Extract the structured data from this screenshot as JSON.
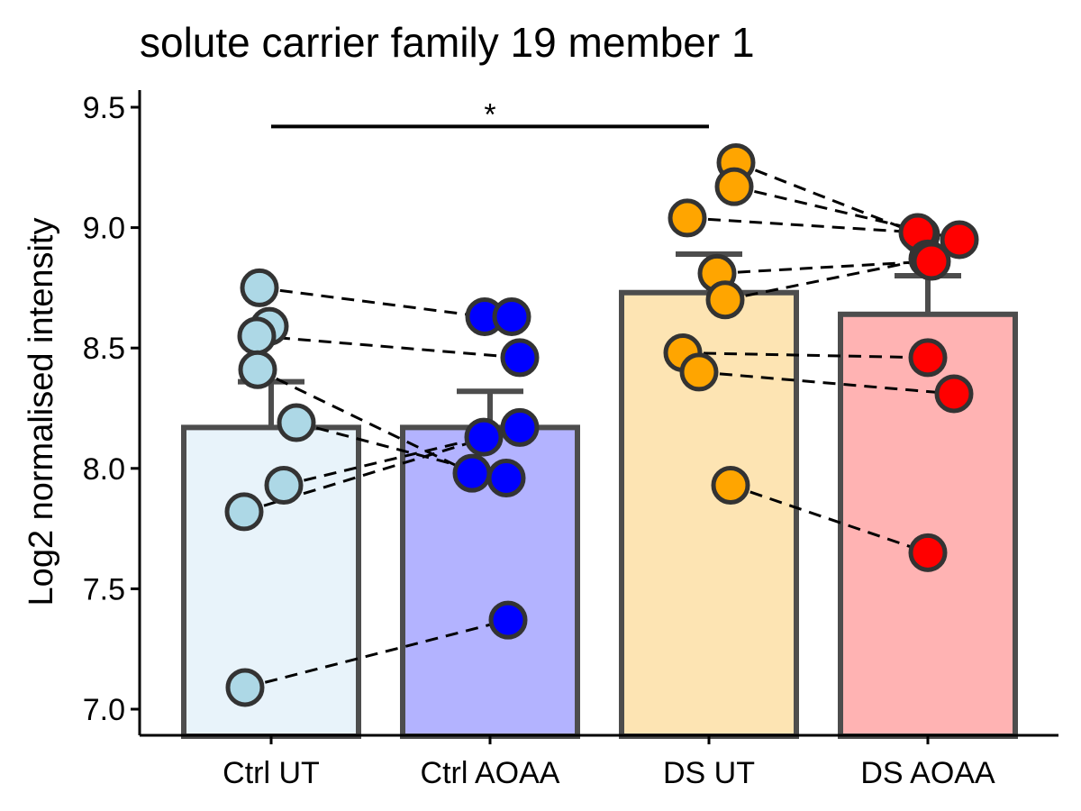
{
  "chart_data": {
    "type": "bar",
    "title": "solute carrier family 19 member 1",
    "xlabel": "",
    "ylabel": "Log2 normalised intensity",
    "ylim": [
      6.9,
      9.6
    ],
    "yticks": [
      "7.0",
      "7.5",
      "8.0",
      "8.5",
      "9.0",
      "9.5"
    ],
    "grid": false,
    "legend": "none",
    "categories": [
      "Ctrl UT",
      "Ctrl AOAA",
      "DS UT",
      "DS AOAA"
    ],
    "values": [
      8.17,
      8.17,
      8.73,
      8.64
    ],
    "errors": [
      0.19,
      0.15,
      0.16,
      0.16
    ],
    "bar_fill_colors": [
      "#e8f3fa",
      "#b3b3ff",
      "#fde4b3",
      "#ffb3b3"
    ],
    "point_colors": [
      "#add8e6",
      "#0000ff",
      "#ffa500",
      "#ff0000"
    ],
    "bar_outline_color": "#4d4d4d",
    "points": [
      [
        7.09,
        8.75,
        8.59,
        8.55,
        8.41,
        8.19,
        7.93,
        7.82
      ],
      [
        7.37,
        8.63,
        8.63,
        8.46,
        8.17,
        8.13,
        7.98,
        7.96
      ],
      [
        9.27,
        9.17,
        9.04,
        8.81,
        8.7,
        8.48,
        8.4,
        7.93
      ],
      [
        8.97,
        8.98,
        8.95,
        8.87,
        8.86,
        8.46,
        8.31,
        7.65
      ]
    ],
    "pairs": [
      {
        "from_group": 0,
        "to_group": 1,
        "from": 7.09,
        "to": 7.37
      },
      {
        "from_group": 0,
        "to_group": 1,
        "from": 8.75,
        "to": 8.63
      },
      {
        "from_group": 0,
        "to_group": 1,
        "from": 8.55,
        "to": 8.46
      },
      {
        "from_group": 0,
        "to_group": 1,
        "from": 8.41,
        "to": 7.98
      },
      {
        "from_group": 0,
        "to_group": 1,
        "from": 8.19,
        "to": 7.96
      },
      {
        "from_group": 0,
        "to_group": 1,
        "from": 7.93,
        "to": 8.13
      },
      {
        "from_group": 0,
        "to_group": 1,
        "from": 7.82,
        "to": 8.17
      },
      {
        "from_group": 2,
        "to_group": 3,
        "from": 9.27,
        "to": 8.97
      },
      {
        "from_group": 2,
        "to_group": 3,
        "from": 9.17,
        "to": 8.95
      },
      {
        "from_group": 2,
        "to_group": 3,
        "from": 9.04,
        "to": 8.98
      },
      {
        "from_group": 2,
        "to_group": 3,
        "from": 8.81,
        "to": 8.86
      },
      {
        "from_group": 2,
        "to_group": 3,
        "from": 8.7,
        "to": 8.87
      },
      {
        "from_group": 2,
        "to_group": 3,
        "from": 8.48,
        "to": 8.46
      },
      {
        "from_group": 2,
        "to_group": 3,
        "from": 8.4,
        "to": 8.31
      },
      {
        "from_group": 2,
        "to_group": 3,
        "from": 7.93,
        "to": 7.65
      }
    ],
    "significance": [
      {
        "from_group": 0,
        "to_group": 2,
        "y": 9.42,
        "label": "*"
      }
    ]
  }
}
